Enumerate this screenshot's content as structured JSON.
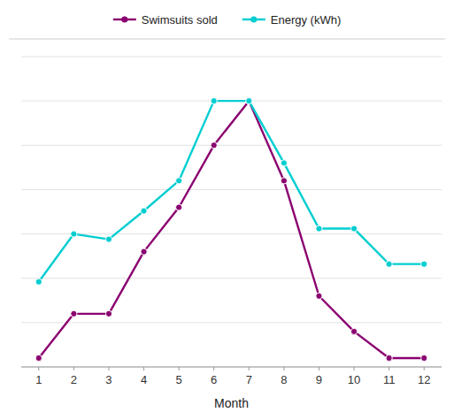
{
  "chart_data": {
    "type": "line",
    "x": [
      1,
      2,
      3,
      4,
      5,
      6,
      7,
      8,
      9,
      10,
      11,
      12
    ],
    "series": [
      {
        "name": "Swimsuits sold",
        "color": "#8B0070",
        "marker": "circle",
        "values": [
          5,
          30,
          30,
          65,
          90,
          125,
          150,
          105,
          40,
          20,
          5,
          5
        ]
      },
      {
        "name": "Energy (kWh)",
        "color": "#00CED1",
        "marker": "circle",
        "values": [
          48,
          75,
          72,
          88,
          105,
          150,
          150,
          115,
          78,
          78,
          58,
          58
        ]
      }
    ],
    "xlabel": "Month",
    "xlim": [
      0.5,
      12.5
    ],
    "ylim": [
      0,
      175
    ],
    "xticks": [
      1,
      2,
      3,
      4,
      5,
      6,
      7,
      8,
      9,
      10,
      11,
      12
    ],
    "yticks": [
      0,
      25,
      50,
      75,
      100,
      125,
      150,
      175
    ],
    "grid": true,
    "legend": "top",
    "tick_labels": "x"
  }
}
